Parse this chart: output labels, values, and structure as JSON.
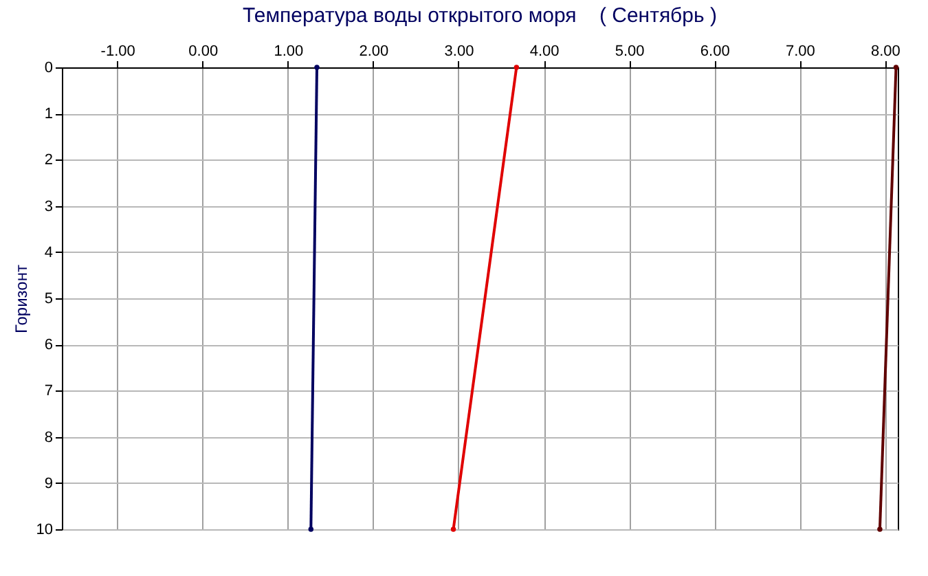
{
  "chart_data": {
    "type": "line",
    "title": "Температура воды открытого моря    ( Сентябрь )",
    "ylabel": "Горизонт",
    "series": [
      {
        "color": "#000060",
        "x": [
          1.34,
          1.27
        ],
        "values": [
          0,
          10
        ]
      },
      {
        "color": "#e00000",
        "x": [
          3.68,
          2.94
        ],
        "values": [
          0,
          10
        ]
      },
      {
        "color": "#600000",
        "x": [
          8.13,
          7.94
        ],
        "values": [
          0,
          10
        ]
      }
    ],
    "xlim": [
      -1.65,
      8.15
    ],
    "xticks": [
      {
        "value": -1,
        "label": "-1.00"
      },
      {
        "value": 0,
        "label": "0.00"
      },
      {
        "value": 1,
        "label": "1.00"
      },
      {
        "value": 2,
        "label": "2.00"
      },
      {
        "value": 3,
        "label": "3.00"
      },
      {
        "value": 4,
        "label": "4.00"
      },
      {
        "value": 5,
        "label": "5.00"
      },
      {
        "value": 6,
        "label": "6.00"
      },
      {
        "value": 7,
        "label": "7.00"
      },
      {
        "value": 8,
        "label": "8.00"
      }
    ],
    "ylim": [
      10,
      0
    ],
    "yticks": [
      0,
      1,
      2,
      3,
      4,
      5,
      6,
      7,
      8,
      9,
      10
    ],
    "grid": true,
    "marker": "circle",
    "line_style": "solid",
    "legend": false
  }
}
